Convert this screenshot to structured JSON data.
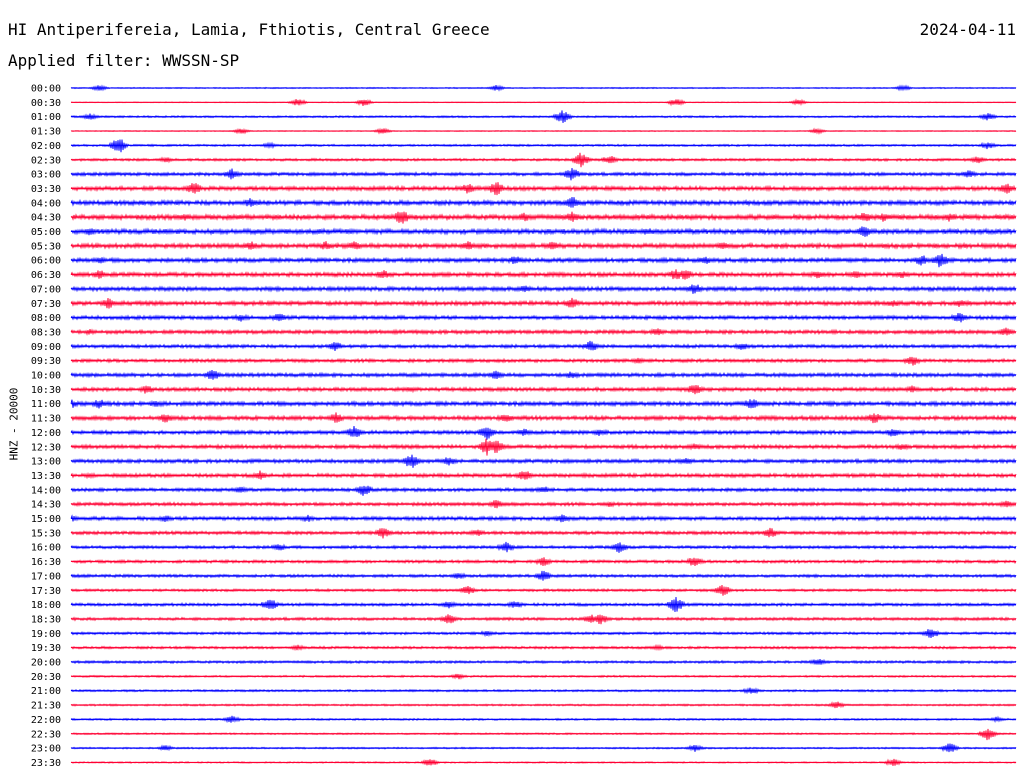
{
  "header": {
    "station": "HI Antiperifereia, Lamia, Fthiotis, Central Greece",
    "date": "2024-04-11",
    "filter": "Applied filter: WWSSN-SP"
  },
  "axis": {
    "channel_label": "HNZ - 20000"
  },
  "colors": {
    "even_row": "#0000ff",
    "odd_row": "#ff0033",
    "text": "#000000",
    "background": "#ffffff"
  },
  "chart_data": {
    "type": "line",
    "chart_kind": "helicorder",
    "title": "HI Antiperifereia, Lamia, Fthiotis, Central Greece",
    "subtitle": "Applied filter: WWSSN-SP",
    "ylabel": "HNZ - 20000",
    "row_interval_minutes": 30,
    "y_ticks": [
      "00:00",
      "00:30",
      "01:00",
      "01:30",
      "02:00",
      "02:30",
      "03:00",
      "03:30",
      "04:00",
      "04:30",
      "05:00",
      "05:30",
      "06:00",
      "06:30",
      "07:00",
      "07:30",
      "08:00",
      "08:30",
      "09:00",
      "09:30",
      "10:00",
      "10:30",
      "11:00",
      "11:30",
      "12:00",
      "12:30",
      "13:00",
      "13:30",
      "14:00",
      "14:30",
      "15:00",
      "15:30",
      "16:00",
      "16:30",
      "17:00",
      "17:30",
      "18:00",
      "18:30",
      "19:00",
      "19:30",
      "20:00",
      "20:30",
      "21:00",
      "21:30",
      "22:00",
      "22:30",
      "23:00",
      "23:30"
    ],
    "noise_level": [
      0.6,
      0.4,
      0.9,
      0.5,
      1.0,
      1.2,
      1.6,
      2.0,
      2.2,
      2.4,
      2.4,
      2.2,
      2.0,
      2.0,
      2.0,
      2.0,
      1.8,
      1.8,
      1.6,
      1.6,
      1.8,
      1.8,
      2.0,
      2.0,
      1.8,
      1.8,
      1.8,
      1.8,
      1.6,
      1.6,
      1.8,
      1.6,
      1.4,
      1.4,
      1.4,
      1.2,
      1.4,
      1.4,
      1.2,
      1.2,
      1.2,
      0.9,
      1.0,
      0.9,
      0.9,
      0.8,
      0.8,
      0.7
    ],
    "events": [
      [
        [
          0.03,
          3
        ],
        [
          0.45,
          3
        ],
        [
          0.88,
          3
        ]
      ],
      [
        [
          0.24,
          4
        ],
        [
          0.31,
          4
        ],
        [
          0.64,
          4
        ],
        [
          0.77,
          3
        ]
      ],
      [
        [
          0.02,
          4
        ],
        [
          0.52,
          7
        ],
        [
          0.97,
          4
        ]
      ],
      [
        [
          0.18,
          3
        ],
        [
          0.33,
          3
        ],
        [
          0.79,
          3
        ]
      ],
      [
        [
          0.05,
          9
        ],
        [
          0.21,
          3
        ],
        [
          0.97,
          4
        ]
      ],
      [
        [
          0.1,
          3
        ],
        [
          0.54,
          8
        ],
        [
          0.57,
          5
        ],
        [
          0.96,
          4
        ]
      ],
      [
        [
          0.17,
          6
        ],
        [
          0.53,
          7
        ],
        [
          0.95,
          4
        ]
      ],
      [
        [
          0.13,
          7
        ],
        [
          0.42,
          6
        ],
        [
          0.45,
          8
        ],
        [
          0.99,
          6
        ]
      ],
      [
        [
          0.19,
          5
        ],
        [
          0.53,
          7
        ]
      ],
      [
        [
          0.12,
          4
        ],
        [
          0.35,
          8
        ],
        [
          0.48,
          5
        ],
        [
          0.53,
          6
        ],
        [
          0.84,
          6
        ],
        [
          0.86,
          5
        ],
        [
          0.93,
          5
        ]
      ],
      [
        [
          0.02,
          4
        ],
        [
          0.61,
          4
        ],
        [
          0.84,
          7
        ]
      ],
      [
        [
          0.19,
          5
        ],
        [
          0.27,
          5
        ],
        [
          0.3,
          5
        ],
        [
          0.42,
          5
        ],
        [
          0.51,
          5
        ],
        [
          0.69,
          4
        ]
      ],
      [
        [
          0.03,
          4
        ],
        [
          0.47,
          5
        ],
        [
          0.67,
          5
        ],
        [
          0.9,
          6
        ],
        [
          0.92,
          8
        ]
      ],
      [
        [
          0.03,
          5
        ],
        [
          0.33,
          5
        ],
        [
          0.64,
          6
        ],
        [
          0.65,
          6
        ],
        [
          0.79,
          5
        ],
        [
          0.83,
          5
        ],
        [
          0.88,
          4
        ]
      ],
      [
        [
          0.48,
          4
        ],
        [
          0.66,
          6
        ]
      ],
      [
        [
          0.04,
          6
        ],
        [
          0.53,
          6
        ],
        [
          0.87,
          4
        ],
        [
          0.94,
          4
        ]
      ],
      [
        [
          0.18,
          4
        ],
        [
          0.22,
          5
        ],
        [
          0.94,
          6
        ]
      ],
      [
        [
          0.02,
          3
        ],
        [
          0.62,
          4
        ],
        [
          0.99,
          5
        ]
      ],
      [
        [
          0.28,
          5
        ],
        [
          0.55,
          6
        ],
        [
          0.71,
          4
        ]
      ],
      [
        [
          0.6,
          3
        ],
        [
          0.89,
          6
        ]
      ],
      [
        [
          0.15,
          6
        ],
        [
          0.45,
          5
        ],
        [
          0.53,
          4
        ]
      ],
      [
        [
          0.08,
          5
        ],
        [
          0.36,
          3
        ],
        [
          0.66,
          6
        ],
        [
          0.89,
          4
        ]
      ],
      [
        [
          0.0,
          5
        ],
        [
          0.03,
          5
        ],
        [
          0.09,
          4
        ],
        [
          0.72,
          6
        ]
      ],
      [
        [
          0.1,
          5
        ],
        [
          0.28,
          6
        ],
        [
          0.46,
          5
        ],
        [
          0.85,
          6
        ]
      ],
      [
        [
          0.3,
          7
        ],
        [
          0.44,
          9
        ],
        [
          0.48,
          4
        ],
        [
          0.56,
          4
        ],
        [
          0.87,
          5
        ]
      ],
      [
        [
          0.44,
          9
        ],
        [
          0.45,
          8
        ],
        [
          0.66,
          4
        ],
        [
          0.88,
          4
        ]
      ],
      [
        [
          0.36,
          8
        ],
        [
          0.4,
          5
        ],
        [
          0.65,
          4
        ]
      ],
      [
        [
          0.02,
          3
        ],
        [
          0.2,
          5
        ],
        [
          0.48,
          6
        ]
      ],
      [
        [
          0.18,
          4
        ],
        [
          0.31,
          7
        ],
        [
          0.5,
          4
        ]
      ],
      [
        [
          0.45,
          5
        ],
        [
          0.57,
          3
        ],
        [
          0.99,
          4
        ]
      ],
      [
        [
          0.0,
          5
        ],
        [
          0.1,
          4
        ],
        [
          0.25,
          4
        ],
        [
          0.52,
          5
        ]
      ],
      [
        [
          0.33,
          6
        ],
        [
          0.43,
          4
        ],
        [
          0.74,
          6
        ]
      ],
      [
        [
          0.22,
          4
        ],
        [
          0.46,
          6
        ],
        [
          0.58,
          6
        ]
      ],
      [
        [
          0.5,
          5
        ],
        [
          0.66,
          6
        ]
      ],
      [
        [
          0.41,
          4
        ],
        [
          0.5,
          6
        ]
      ],
      [
        [
          0.42,
          5
        ],
        [
          0.69,
          6
        ]
      ],
      [
        [
          0.21,
          7
        ],
        [
          0.4,
          4
        ],
        [
          0.47,
          4
        ],
        [
          0.64,
          8
        ]
      ],
      [
        [
          0.4,
          6
        ],
        [
          0.55,
          5
        ],
        [
          0.56,
          6
        ]
      ],
      [
        [
          0.44,
          3
        ],
        [
          0.91,
          6
        ]
      ],
      [
        [
          0.24,
          3
        ],
        [
          0.62,
          3
        ]
      ],
      [
        [
          0.79,
          4
        ]
      ],
      [
        [
          0.41,
          3
        ]
      ],
      [
        [
          0.72,
          4
        ]
      ],
      [
        [
          0.81,
          4
        ]
      ],
      [
        [
          0.17,
          4
        ],
        [
          0.98,
          3
        ]
      ],
      [
        [
          0.97,
          7
        ]
      ],
      [
        [
          0.1,
          3
        ],
        [
          0.66,
          4
        ],
        [
          0.93,
          6
        ]
      ],
      [
        [
          0.38,
          4
        ],
        [
          0.87,
          4
        ]
      ]
    ],
    "legend": "none",
    "grid": false
  }
}
